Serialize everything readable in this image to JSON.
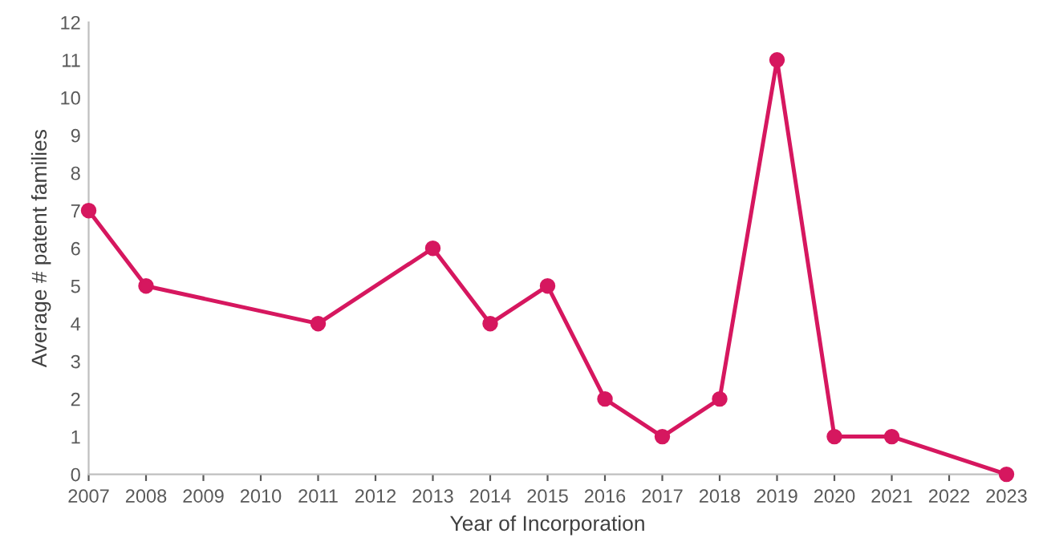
{
  "chart_data": {
    "type": "line",
    "xlabel": "Year of Incorporation",
    "ylabel": "Average # patent families",
    "x": [
      2007,
      2008,
      2011,
      2013,
      2014,
      2015,
      2016,
      2017,
      2018,
      2019,
      2020,
      2021,
      2023
    ],
    "series": [
      {
        "color": "#d6175f",
        "values": [
          7,
          5,
          4,
          6,
          4,
          5,
          2,
          1,
          2,
          11,
          1,
          1,
          0
        ]
      }
    ],
    "xlim": [
      2007,
      2023
    ],
    "xticks": [
      2007,
      2008,
      2009,
      2010,
      2011,
      2012,
      2013,
      2014,
      2015,
      2016,
      2017,
      2018,
      2019,
      2020,
      2021,
      2022,
      2023
    ],
    "ylim": [
      0,
      12
    ],
    "yticks": [
      0,
      1,
      2,
      3,
      4,
      5,
      6,
      7,
      8,
      9,
      10,
      11,
      12
    ],
    "grid": false,
    "legend": false,
    "marker": "circle",
    "line_style": "solid"
  }
}
